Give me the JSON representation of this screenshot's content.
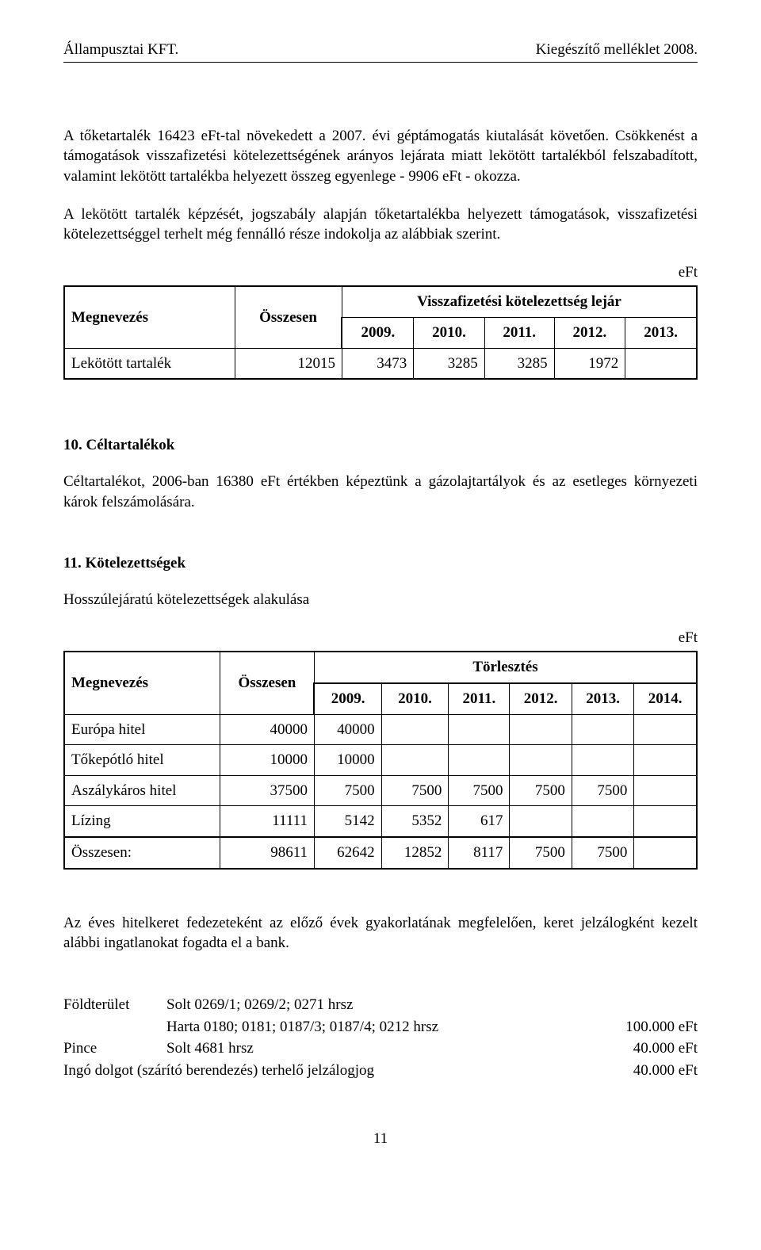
{
  "header": {
    "left": "Állampusztai KFT.",
    "right": "Kiegészítő melléklet 2008."
  },
  "paragraphs": {
    "p1": "A tőketartalék 16423 eFt-tal növekedett a 2007. évi géptámogatás kiutalását követően. Csökkenést a támogatások visszafizetési kötelezettségének arányos lejárata miatt lekötött tartalékból felszabadított, valamint lekötött tartalékba helyezett összeg egyenlege - 9906 eFt  - okozza.",
    "p2": "A lekötött tartalék képzését, jogszabály alapján tőketartalékba helyezett támogatások, visszafizetési kötelezettséggel terhelt még fennálló része indokolja az alábbiak szerint.",
    "p3": "Céltartalékot, 2006-ban 16380 eFt értékben képeztünk a gázolajtartályok és az esetleges környezeti károk felszámolására.",
    "p4": "Hosszúlejáratú kötelezettségek alakulása",
    "p5": "Az éves hitelkeret fedezeteként az előző évek gyakorlatának megfelelően, keret jelzálogként kezelt alábbi ingatlanokat fogadta el a bank."
  },
  "unit": "eFt",
  "sections": {
    "s10": "10. Céltartalékok",
    "s11": "11. Kötelezettségek"
  },
  "table1": {
    "col_megnevezes": "Megnevezés",
    "col_osszesen": "Összesen",
    "col_group": "Visszafizetési kötelezettség lejár",
    "years": {
      "y1": "2009.",
      "y2": "2010.",
      "y3": "2011.",
      "y4": "2012.",
      "y5": "2013."
    },
    "row": {
      "label": "Lekötött tartalék",
      "osszesen": "12015",
      "v2009": "3473",
      "v2010": "3285",
      "v2011": "3285",
      "v2012": "1972",
      "v2013": ""
    }
  },
  "table2": {
    "col_megnevezes": "Megnevezés",
    "col_osszesen": "Összesen",
    "col_group": "Törlesztés",
    "years": {
      "y1": "2009.",
      "y2": "2010.",
      "y3": "2011.",
      "y4": "2012.",
      "y5": "2013.",
      "y6": "2014."
    },
    "rows": {
      "r1": {
        "label": "Európa hitel",
        "osszesen": "40000",
        "v1": "40000",
        "v2": "",
        "v3": "",
        "v4": "",
        "v5": "",
        "v6": ""
      },
      "r2": {
        "label": "Tőkepótló hitel",
        "osszesen": "10000",
        "v1": "10000",
        "v2": "",
        "v3": "",
        "v4": "",
        "v5": "",
        "v6": ""
      },
      "r3": {
        "label": "Aszálykáros hitel",
        "osszesen": "37500",
        "v1": "7500",
        "v2": "7500",
        "v3": "7500",
        "v4": "7500",
        "v5": "7500",
        "v6": ""
      },
      "r4": {
        "label": "Lízing",
        "osszesen": "11111",
        "v1": "5142",
        "v2": "5352",
        "v3": "617",
        "v4": "",
        "v5": "",
        "v6": ""
      },
      "sum": {
        "label": "Összesen:",
        "osszesen": "98611",
        "v1": "62642",
        "v2": "12852",
        "v3": "8117",
        "v4": "7500",
        "v5": "7500",
        "v6": ""
      }
    }
  },
  "land": {
    "l1_label": "Földterület",
    "l1_text": "Solt   0269/1; 0269/2; 0271 hrsz",
    "l2_text": "Harta 0180; 0181; 0187/3; 0187/4; 0212 hrsz",
    "l2_value": "100.000 eFt",
    "l3_label": "Pince",
    "l3_text": "Solt 4681 hrsz",
    "l3_value": "40.000 eFt",
    "l4_text": "Ingó dolgot (szárító berendezés) terhelő jelzálogjog",
    "l4_value": "40.000 eFt"
  },
  "page_number": "11"
}
